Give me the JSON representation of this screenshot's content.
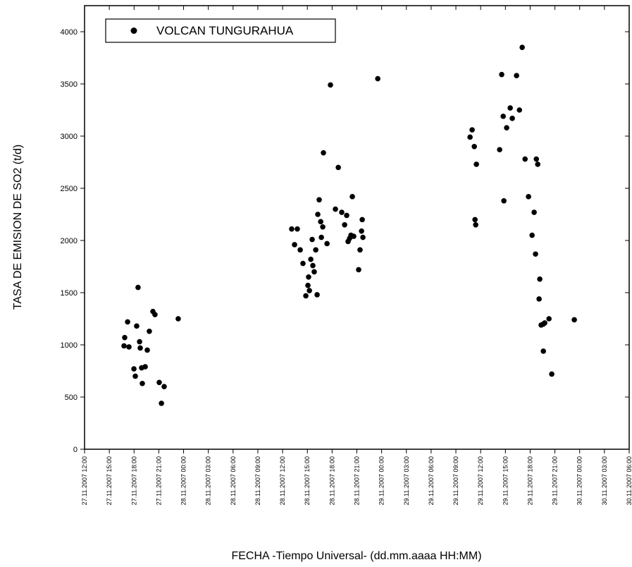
{
  "chart_data": {
    "type": "scatter",
    "x_label": "FECHA -Tiempo Universal- (dd.mm.aaaa HH:MM)",
    "y_label": "TASA DE EMISION DE SO2 (t/d)",
    "xlim": [
      "27.11.2007 12:00",
      "30.11.2007 06:00"
    ],
    "xticks": [
      "27.11.2007 12:00",
      "27.11.2007 15:00",
      "27.11.2007 18:00",
      "27.11.2007 21:00",
      "28.11.2007 00:00",
      "28.11.2007 03:00",
      "28.11.2007 06:00",
      "28.11.2007 09:00",
      "28.11.2007 12:00",
      "28.11.2007 15:00",
      "28.11.2007 18:00",
      "28.11.2007 21:00",
      "29.11.2007 00:00",
      "29.11.2007 03:00",
      "29.11.2007 06:00",
      "29.11.2007 09:00",
      "29.11.2007 12:00",
      "29.11.2007 15:00",
      "29.11.2007 18:00",
      "29.11.2007 21:00",
      "30.11.2007 00:00",
      "30.11.2007 03:00",
      "30.11.2007 06:00"
    ],
    "ylim": [
      0,
      4250
    ],
    "yticks": [
      0,
      500,
      1000,
      1500,
      2000,
      2500,
      3000,
      3500,
      4000
    ],
    "legend": "upper left",
    "series": [
      {
        "name": "VOLCAN TUNGURAHUA",
        "color": "#000000",
        "x": [
          "27.11.2007 16:47",
          "27.11.2007 16:52",
          "27.11.2007 17:13",
          "27.11.2007 17:23",
          "27.11.2007 17:59",
          "27.11.2007 18:09",
          "27.11.2007 18:19",
          "27.11.2007 18:29",
          "27.11.2007 18:40",
          "27.11.2007 18:45",
          "27.11.2007 18:55",
          "27.11.2007 19:00",
          "27.11.2007 19:21",
          "27.11.2007 19:36",
          "27.11.2007 19:51",
          "27.11.2007 20:17",
          "27.11.2007 20:32",
          "27.11.2007 21:03",
          "27.11.2007 21:19",
          "27.11.2007 21:39",
          "27.11.2007 23:21",
          "28.11.2007 13:06",
          "28.11.2007 13:27",
          "28.11.2007 13:47",
          "28.11.2007 14:08",
          "28.11.2007 14:28",
          "28.11.2007 14:49",
          "28.11.2007 15:04",
          "28.11.2007 15:15",
          "28.11.2007 15:09",
          "28.11.2007 15:25",
          "28.11.2007 15:35",
          "28.11.2007 15:40",
          "28.11.2007 15:50",
          "28.11.2007 16:01",
          "28.11.2007 16:11",
          "28.11.2007 16:16",
          "28.11.2007 16:26",
          "28.11.2007 16:37",
          "28.11.2007 16:42",
          "28.11.2007 16:52",
          "28.11.2007 16:57",
          "28.11.2007 17:23",
          "28.11.2007 17:48",
          "28.11.2007 18:24",
          "28.11.2007 18:45",
          "28.11.2007 19:10",
          "28.11.2007 19:31",
          "28.11.2007 19:46",
          "28.11.2007 19:56",
          "28.11.2007 20:07",
          "28.11.2007 20:17",
          "28.11.2007 20:27",
          "28.11.2007 20:37",
          "28.11.2007 21:13",
          "28.11.2007 21:23",
          "28.11.2007 21:34",
          "28.11.2007 21:39",
          "28.11.2007 21:44",
          "28.11.2007 23:32",
          "29.11.2007 10:43",
          "29.11.2007 10:58",
          "29.11.2007 11:14",
          "29.11.2007 11:19",
          "29.11.2007 11:24",
          "29.11.2007 11:29",
          "29.11.2007 14:18",
          "29.11.2007 14:33",
          "29.11.2007 14:44",
          "29.11.2007 14:49",
          "29.11.2007 15:09",
          "29.11.2007 15:35",
          "29.11.2007 15:50",
          "29.11.2007 16:21",
          "29.11.2007 16:42",
          "29.11.2007 17:02",
          "29.11.2007 17:23",
          "29.11.2007 17:48",
          "29.11.2007 18:14",
          "29.11.2007 18:29",
          "29.11.2007 18:39",
          "29.11.2007 18:45",
          "29.11.2007 18:55",
          "29.11.2007 19:05",
          "29.11.2007 19:10",
          "29.11.2007 19:20",
          "29.11.2007 19:36",
          "29.11.2007 19:46",
          "29.11.2007 20:17",
          "29.11.2007 19:36",
          "29.11.2007 20:37",
          "29.11.2007 23:21"
        ],
        "values": [
          990,
          1070,
          1220,
          980,
          770,
          700,
          1180,
          1550,
          1030,
          970,
          780,
          630,
          790,
          950,
          1130,
          1320,
          1290,
          640,
          440,
          600,
          1250,
          2110,
          1960,
          2110,
          1910,
          1780,
          1470,
          1570,
          1520,
          1650,
          1820,
          2010,
          1760,
          1700,
          1910,
          1480,
          2250,
          2390,
          2180,
          2030,
          2130,
          2840,
          1970,
          3490,
          2300,
          2700,
          2270,
          2150,
          2240,
          1990,
          2020,
          2050,
          2420,
          2040,
          1720,
          1910,
          2090,
          2200,
          2030,
          3550,
          2990,
          3060,
          2900,
          2200,
          2150,
          2730,
          2870,
          3590,
          3190,
          2380,
          3080,
          3270,
          3170,
          3580,
          3250,
          3850,
          2780,
          2420,
          2050,
          2270,
          1870,
          2780,
          2730,
          1440,
          1630,
          1190,
          1200,
          1210,
          1250,
          940,
          720,
          1240
        ]
      }
    ]
  }
}
